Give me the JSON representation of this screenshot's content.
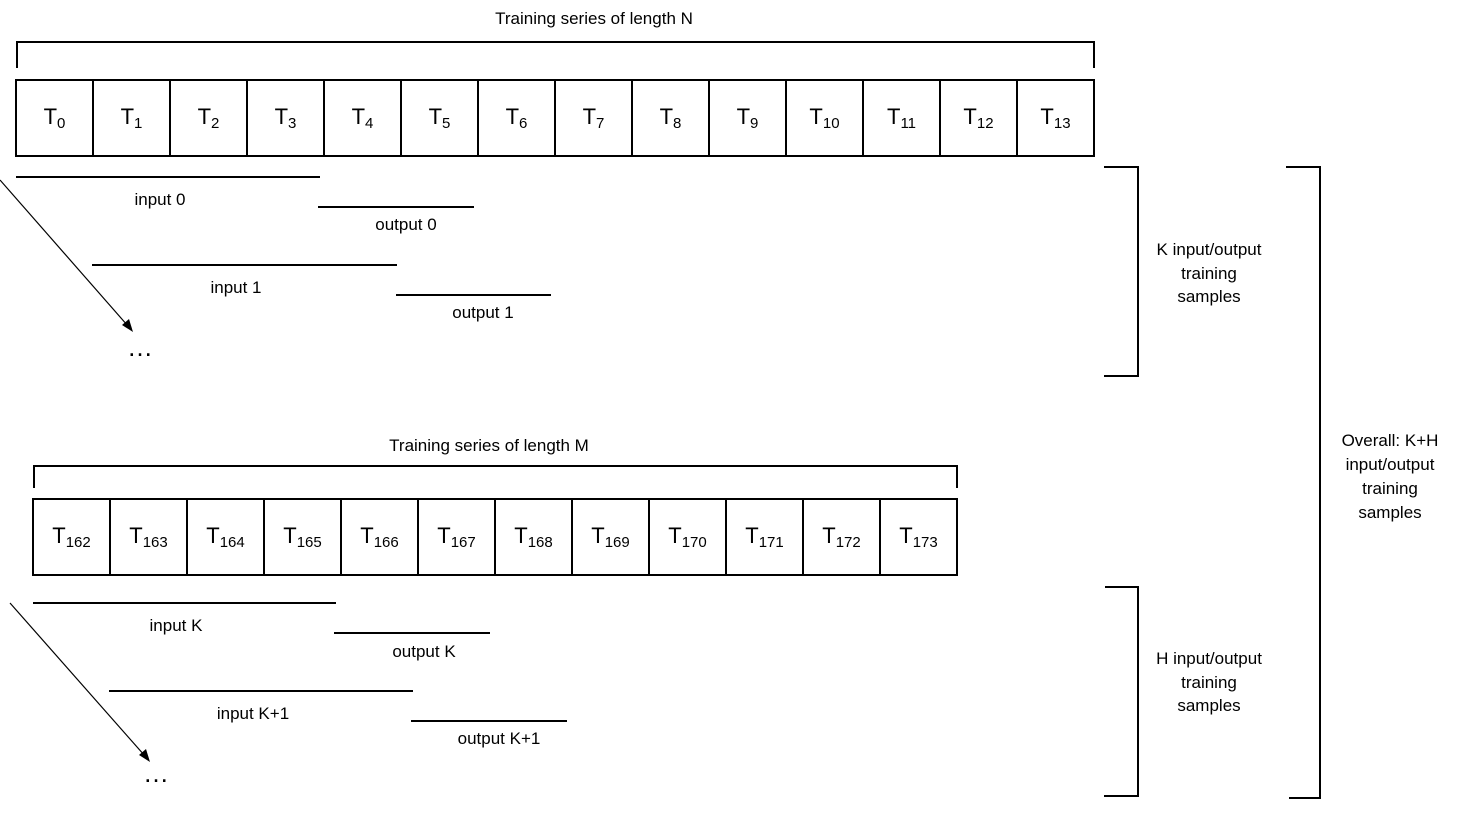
{
  "series_top": {
    "title": "Training series of length N",
    "cells": [
      {
        "base": "T",
        "sub": "0"
      },
      {
        "base": "T",
        "sub": "1"
      },
      {
        "base": "T",
        "sub": "2"
      },
      {
        "base": "T",
        "sub": "3"
      },
      {
        "base": "T",
        "sub": "4"
      },
      {
        "base": "T",
        "sub": "5"
      },
      {
        "base": "T",
        "sub": "6"
      },
      {
        "base": "T",
        "sub": "7"
      },
      {
        "base": "T",
        "sub": "8"
      },
      {
        "base": "T",
        "sub": "9"
      },
      {
        "base": "T",
        "sub": "10"
      },
      {
        "base": "T",
        "sub": "11"
      },
      {
        "base": "T",
        "sub": "12"
      },
      {
        "base": "T",
        "sub": "13"
      }
    ],
    "windows": [
      "input 0",
      "output 0",
      "input 1",
      "output 1"
    ],
    "ellipsis": "…"
  },
  "series_bottom": {
    "title": "Training series of length M",
    "cells": [
      {
        "base": "T",
        "sub": "162"
      },
      {
        "base": "T",
        "sub": "163"
      },
      {
        "base": "T",
        "sub": "164"
      },
      {
        "base": "T",
        "sub": "165"
      },
      {
        "base": "T",
        "sub": "166"
      },
      {
        "base": "T",
        "sub": "167"
      },
      {
        "base": "T",
        "sub": "168"
      },
      {
        "base": "T",
        "sub": "169"
      },
      {
        "base": "T",
        "sub": "170"
      },
      {
        "base": "T",
        "sub": "171"
      },
      {
        "base": "T",
        "sub": "172"
      },
      {
        "base": "T",
        "sub": "173"
      }
    ],
    "windows": [
      "input K",
      "output K",
      "input K+1",
      "output K+1"
    ],
    "ellipsis": "…"
  },
  "brackets": {
    "k_samples": [
      "K input/output",
      "training",
      "samples"
    ],
    "h_samples": [
      "H input/output",
      "training",
      "samples"
    ],
    "overall": [
      "Overall: K+H",
      "input/output",
      "training",
      "samples"
    ]
  }
}
